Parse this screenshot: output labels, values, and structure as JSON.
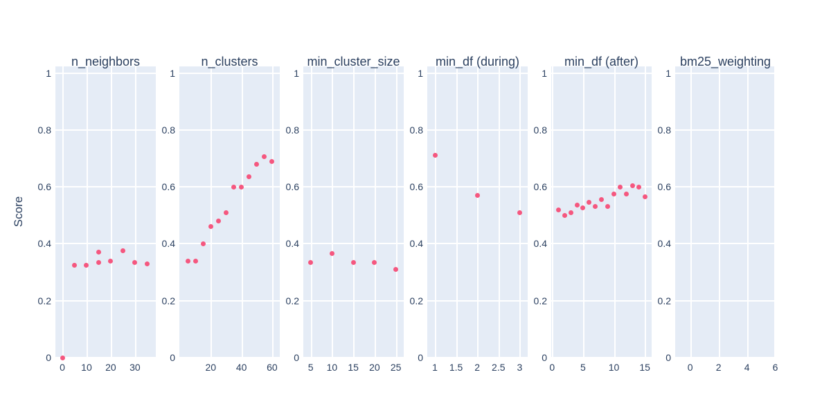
{
  "colors": {
    "marker": "#f5577f",
    "panel_background": "#e5ecf6",
    "gridline": "#ffffff",
    "text": "#2a3f5f",
    "paper_background": "#ffffff"
  },
  "chart_data": {
    "type": "scatter",
    "title": "",
    "ylabel": "Score",
    "xlabel": "",
    "legend": "none",
    "grid": true,
    "ylim": [
      0,
      1.023
    ],
    "y_ticks": [
      0,
      0.2,
      0.4,
      0.6,
      0.8,
      1
    ],
    "y_tick_labels": [
      "0",
      "0.2",
      "0.4",
      "0.6",
      "0.8",
      "1"
    ],
    "subplots": [
      {
        "title": "n_neighbors",
        "x_range": [
          -2.86,
          38.6
        ],
        "x_ticks": [
          0,
          10,
          20,
          30
        ],
        "x_tick_labels": [
          "0",
          "10",
          "20",
          "30"
        ],
        "points": [
          [
            0,
            0
          ],
          [
            5,
            0.325
          ],
          [
            10,
            0.325
          ],
          [
            15,
            0.37
          ],
          [
            15,
            0.335
          ],
          [
            20,
            0.34
          ],
          [
            25,
            0.375
          ],
          [
            30,
            0.335
          ],
          [
            35,
            0.33
          ]
        ]
      },
      {
        "title": "n_clusters",
        "x_range": [
          -0.45,
          65.0
        ],
        "x_ticks": [
          20,
          40,
          60
        ],
        "x_tick_labels": [
          "20",
          "40",
          "60"
        ],
        "points": [
          [
            5,
            0.34
          ],
          [
            10,
            0.34
          ],
          [
            15,
            0.4
          ],
          [
            20,
            0.46
          ],
          [
            25,
            0.48
          ],
          [
            30,
            0.51
          ],
          [
            35,
            0.6
          ],
          [
            40,
            0.6
          ],
          [
            45,
            0.635
          ],
          [
            50,
            0.68
          ],
          [
            55,
            0.705
          ],
          [
            60,
            0.69
          ]
        ]
      },
      {
        "title": "min_cluster_size",
        "x_range": [
          3.26,
          26.85
        ],
        "x_ticks": [
          5,
          10,
          15,
          20,
          25
        ],
        "x_tick_labels": [
          "5",
          "10",
          "15",
          "20",
          "25"
        ],
        "points": [
          [
            5,
            0.335
          ],
          [
            10,
            0.365
          ],
          [
            15,
            0.335
          ],
          [
            20,
            0.335
          ],
          [
            25,
            0.31
          ]
        ]
      },
      {
        "title": "min_df (during)",
        "x_range": [
          0.82,
          3.19
        ],
        "x_ticks": [
          1,
          1.5,
          2,
          2.5,
          3
        ],
        "x_tick_labels": [
          "1",
          "1.5",
          "2",
          "2.5",
          "3"
        ],
        "points": [
          [
            1,
            0.71
          ],
          [
            2,
            0.57
          ],
          [
            3,
            0.51
          ]
        ]
      },
      {
        "title": "min_df (after)",
        "x_range": [
          -0.15,
          16.1
        ],
        "x_ticks": [
          0,
          5,
          10,
          15
        ],
        "x_tick_labels": [
          "0",
          "5",
          "10",
          "15"
        ],
        "points": [
          [
            1,
            0.52
          ],
          [
            2,
            0.5
          ],
          [
            3,
            0.51
          ],
          [
            4,
            0.535
          ],
          [
            5,
            0.525
          ],
          [
            6,
            0.545
          ],
          [
            7,
            0.53
          ],
          [
            8,
            0.555
          ],
          [
            9,
            0.53
          ],
          [
            10,
            0.575
          ],
          [
            11,
            0.6
          ],
          [
            12,
            0.575
          ],
          [
            13,
            0.605
          ],
          [
            14,
            0.6
          ],
          [
            15,
            0.565
          ]
        ]
      },
      {
        "title": "bm25_weighting",
        "x_range": [
          -1.06,
          6.02
        ],
        "x_ticks": [
          0,
          2,
          4,
          6
        ],
        "x_tick_labels": [
          "0",
          "2",
          "4",
          "6"
        ],
        "points": []
      }
    ]
  }
}
